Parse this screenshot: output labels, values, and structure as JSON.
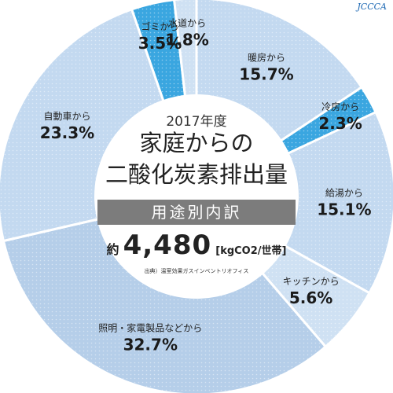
{
  "logo": "JCCCA",
  "center": {
    "year": "2017年度",
    "title_line1": "家庭からの",
    "title_line2": "二酸化炭素排出量",
    "subtitle": "用途別内訳",
    "total_prefix": "約",
    "total_value": "4,480",
    "total_unit": "[kgCO2/世帯]",
    "source": "出典）温室効果ガスインベントリオフィス"
  },
  "chart_data": {
    "type": "pie",
    "unit": "%",
    "slices": [
      {
        "label": "暖房から",
        "value": 15.7,
        "display": "15.7%",
        "color": "#c3d9f0"
      },
      {
        "label": "冷房から",
        "value": 2.3,
        "display": "2.3%",
        "color": "#3aa6e0"
      },
      {
        "label": "給湯から",
        "value": 15.1,
        "display": "15.1%",
        "color": "#c3d9f0"
      },
      {
        "label": "キッチンから",
        "value": 5.6,
        "display": "5.6%",
        "color": "#cfe1f3"
      },
      {
        "label": "照明・家電製品などから",
        "value": 32.7,
        "display": "32.7%",
        "color": "#b5cee9"
      },
      {
        "label": "自動車から",
        "value": 23.3,
        "display": "23.3%",
        "color": "#c3d9f0"
      },
      {
        "label": "ゴミから",
        "value": 3.5,
        "display": "3.5%",
        "color": "#3aa6e0"
      },
      {
        "label": "水道から",
        "value": 1.8,
        "display": "1.8%",
        "color": "#cfe1f3"
      }
    ]
  }
}
